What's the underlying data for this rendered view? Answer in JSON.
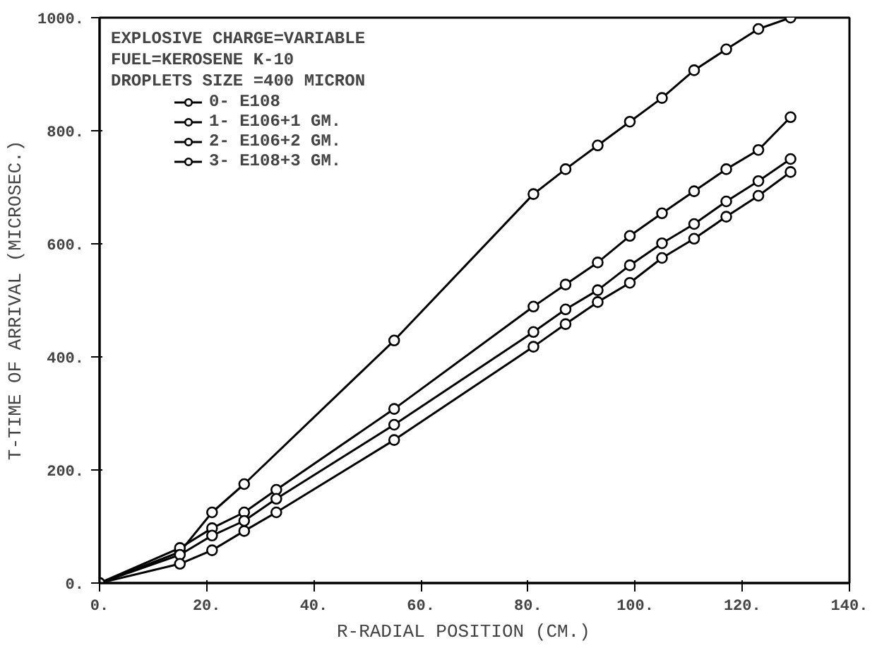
{
  "chart_data": {
    "type": "line",
    "xlabel": "R-RADIAL POSITION   (CM.)",
    "ylabel": "T-TIME OF ARRIVAL (MICROSEC.)",
    "annotations": [
      "EXPLOSIVE CHARGE=VARIABLE",
      "FUEL=KEROSENE K-10",
      "DROPLETS SIZE =400 MICRON"
    ],
    "series": [
      {
        "name": "0- E108",
        "color": "#000000",
        "x": [
          0,
          15,
          21,
          27,
          55,
          81,
          87,
          93,
          99,
          105,
          111,
          117,
          123,
          129
        ],
        "values": [
          0,
          55,
          125,
          175,
          429,
          688,
          732,
          774,
          816,
          858,
          907,
          944,
          980,
          1000
        ]
      },
      {
        "name": "1- E106+1 GM.",
        "color": "#000000",
        "x": [
          0,
          15,
          21,
          27,
          33,
          55,
          81,
          87,
          93,
          99,
          105,
          111,
          117,
          123,
          129
        ],
        "values": [
          0,
          62,
          97,
          125,
          165,
          308,
          489,
          528,
          567,
          614,
          654,
          693,
          732,
          766,
          824
        ]
      },
      {
        "name": "2- E106+2 GM.",
        "color": "#000000",
        "x": [
          0,
          15,
          21,
          27,
          33,
          55,
          81,
          87,
          93,
          99,
          105,
          111,
          117,
          123,
          129
        ],
        "values": [
          0,
          50,
          84,
          110,
          149,
          280,
          444,
          484,
          518,
          562,
          601,
          635,
          675,
          711,
          750
        ]
      },
      {
        "name": "3- E108+3 GM.",
        "color": "#000000",
        "x": [
          0,
          15,
          21,
          27,
          33,
          55,
          81,
          87,
          93,
          99,
          105,
          111,
          117,
          123,
          129
        ],
        "values": [
          0,
          34,
          58,
          92,
          125,
          253,
          418,
          458,
          497,
          531,
          575,
          609,
          648,
          685,
          727
        ]
      }
    ],
    "xlim": [
      0,
      140
    ],
    "ylim": [
      0,
      1000
    ],
    "xticks": [
      {
        "value": 0,
        "label": "0."
      },
      {
        "value": 20,
        "label": "20."
      },
      {
        "value": 40,
        "label": "40."
      },
      {
        "value": 60,
        "label": "60."
      },
      {
        "value": 80,
        "label": "80."
      },
      {
        "value": 100,
        "label": "100."
      },
      {
        "value": 120,
        "label": "120."
      },
      {
        "value": 140,
        "label": "140."
      }
    ],
    "yticks": [
      {
        "value": 0,
        "label": "0."
      },
      {
        "value": 200,
        "label": "200."
      },
      {
        "value": 400,
        "label": "400."
      },
      {
        "value": 600,
        "label": "600."
      },
      {
        "value": 800,
        "label": "800."
      },
      {
        "value": 1000,
        "label": "1000."
      }
    ],
    "grid": false,
    "legend": "top left",
    "marker": "circle",
    "line_style": "solid"
  }
}
